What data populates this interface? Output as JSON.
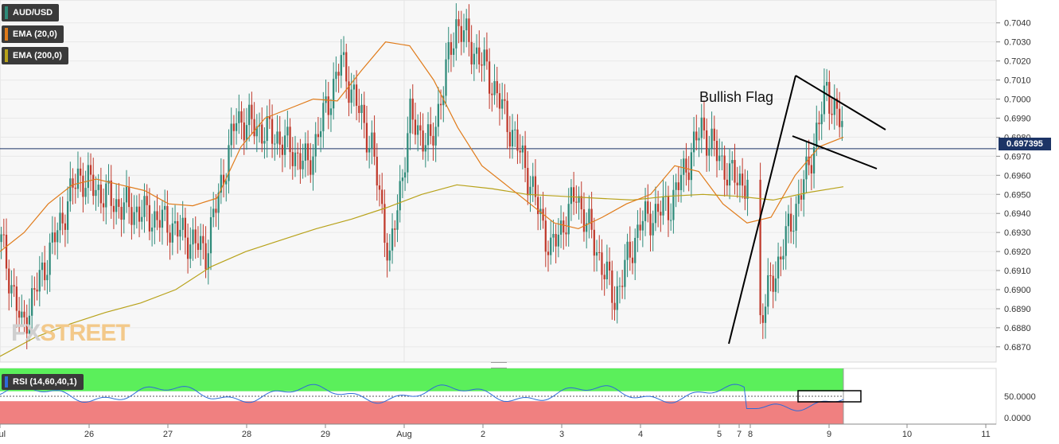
{
  "legend": {
    "symbol": "AUD/USD",
    "ema20": "EMA (20,0)",
    "ema200": "EMA (200,0)",
    "colors": {
      "symbol": "#2e8b7a",
      "ema20": "#e07b1a",
      "ema200": "#b8a21a"
    }
  },
  "price_badge": "0.697395",
  "rsi_label": "RSI (14,60,40,1)",
  "rsi_color": "#2e6bd8",
  "watermark": {
    "fx": "FX",
    "street": "STREET"
  },
  "annotation": "Bullish Flag",
  "chart_data": {
    "type": "candlestick",
    "price_axis": {
      "range": [
        0.6862,
        0.7052
      ],
      "ticks": [
        "0.6870",
        "0.6880",
        "0.6890",
        "0.6900",
        "0.6910",
        "0.6920",
        "0.6930",
        "0.6940",
        "0.6950",
        "0.6960",
        "0.6970",
        "0.6980",
        "0.6990",
        "0.7000",
        "0.7010",
        "0.7020",
        "0.7030",
        "0.7040"
      ]
    },
    "current_price": 0.697395,
    "x_ticks": [
      "Jul",
      "26",
      "27",
      "28",
      "29",
      "Aug",
      "2",
      "3",
      "4",
      "5",
      "7",
      "8",
      "9",
      "10",
      "11"
    ],
    "ema20": [
      0.692,
      0.693,
      0.6945,
      0.6955,
      0.6958,
      0.6955,
      0.6952,
      0.6945,
      0.6944,
      0.6948,
      0.6975,
      0.699,
      0.6995,
      0.7,
      0.6999,
      0.7015,
      0.703,
      0.7028,
      0.701,
      0.6985,
      0.6965,
      0.6955,
      0.6945,
      0.6935,
      0.6932,
      0.6938,
      0.6945,
      0.695,
      0.6965,
      0.6962,
      0.6945,
      0.6935,
      0.6938,
      0.696,
      0.6975,
      0.698
    ],
    "ema200": [
      0.6865,
      0.6875,
      0.6882,
      0.6888,
      0.6893,
      0.69,
      0.6912,
      0.692,
      0.6926,
      0.6932,
      0.6937,
      0.6943,
      0.695,
      0.6955,
      0.6953,
      0.695,
      0.6949,
      0.6948,
      0.6947,
      0.6949,
      0.695,
      0.6949,
      0.6947,
      0.6951,
      0.6954
    ],
    "rsi": {
      "axis_ticks": [
        "50.0000",
        "0.0000"
      ],
      "upper": 60,
      "lower": 40,
      "overbought_color": "#5bef5b",
      "oversold_color": "#f08080"
    },
    "pattern": "Bullish Flag"
  }
}
